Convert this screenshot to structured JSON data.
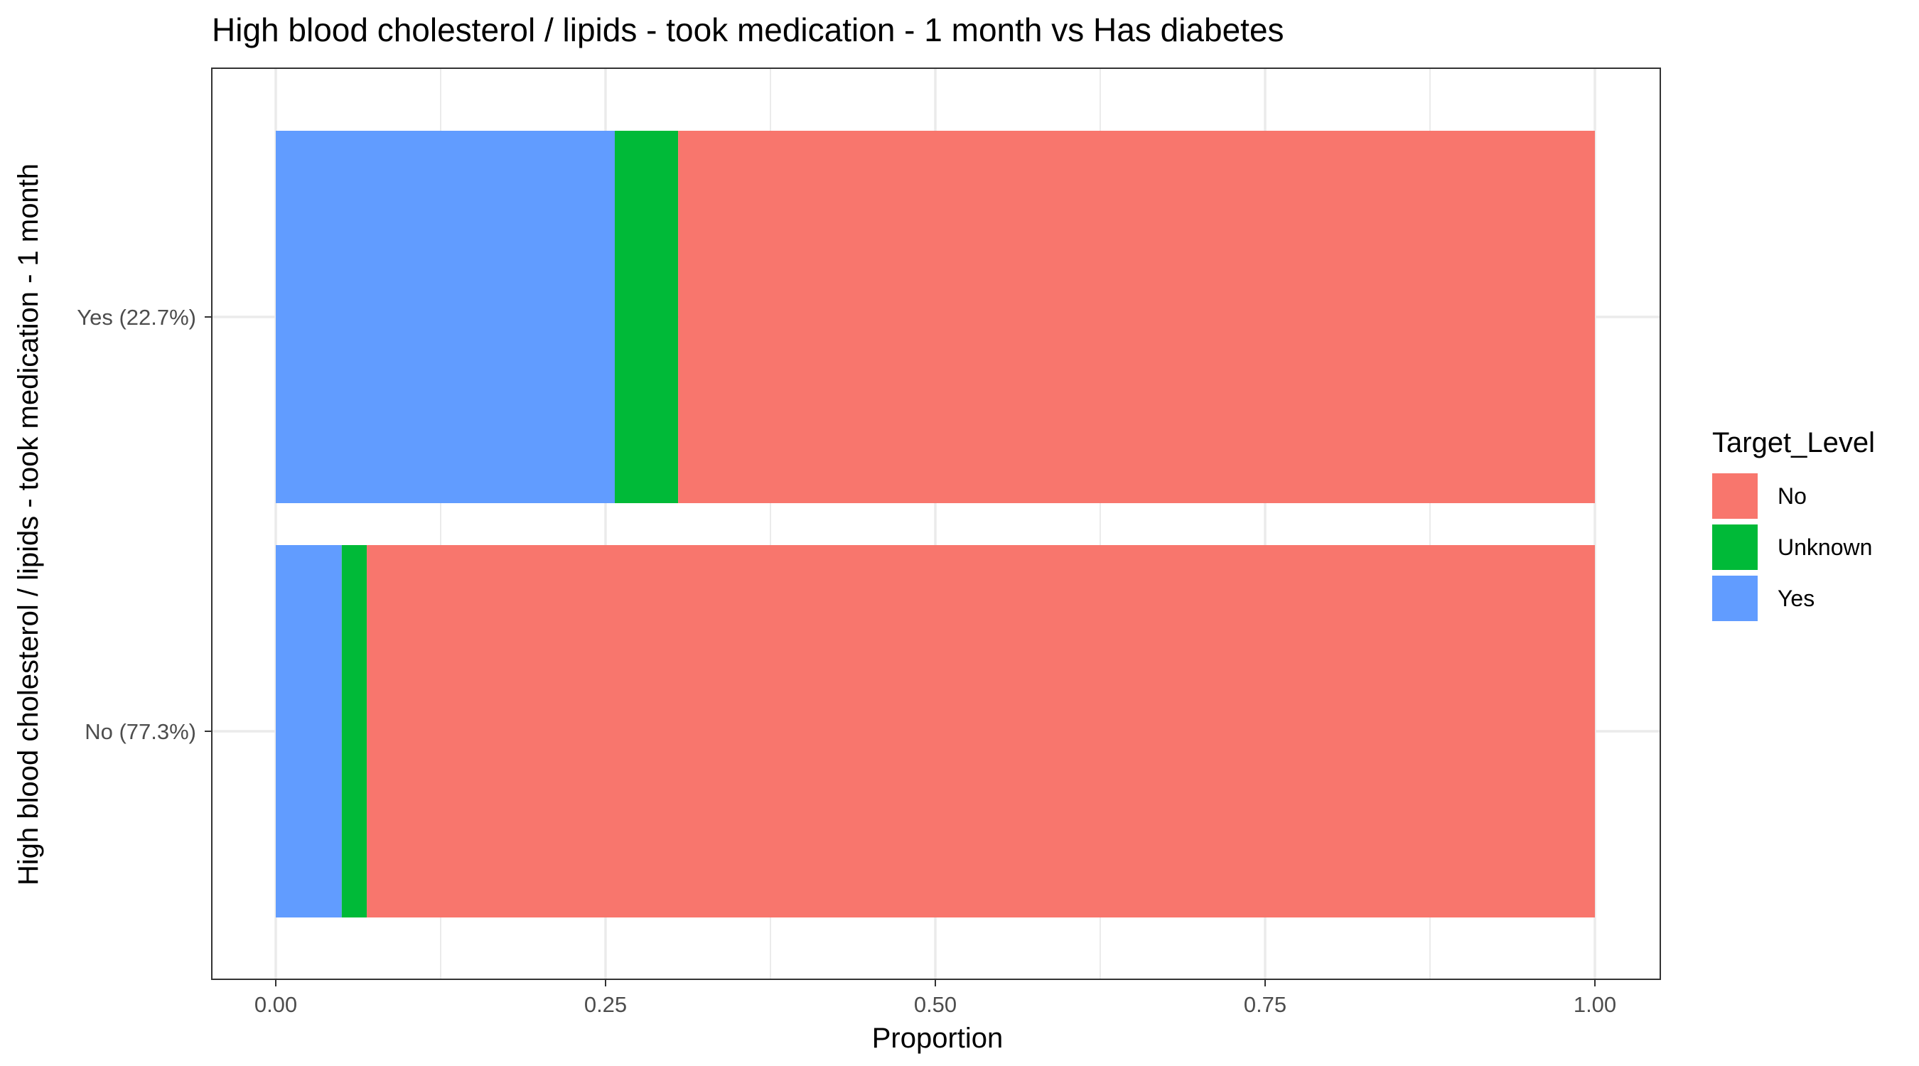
{
  "chart_data": {
    "type": "bar",
    "orientation": "horizontal",
    "stacked": true,
    "title": "High blood cholesterol / lipids - took medication - 1 month vs Has diabetes",
    "xlabel": "Proportion",
    "ylabel": "High blood cholesterol / lipids - took medication - 1 month",
    "xlim": [
      0,
      1
    ],
    "x_ticks": [
      "0.00",
      "0.25",
      "0.50",
      "0.75",
      "1.00"
    ],
    "grid": true,
    "categories": [
      "Yes (22.7%)",
      "No (77.3%)"
    ],
    "series": [
      {
        "name": "Yes",
        "color": "#619CFF",
        "values": [
          0.257,
          0.05
        ]
      },
      {
        "name": "Unknown",
        "color": "#00BA38",
        "values": [
          0.048,
          0.019
        ]
      },
      {
        "name": "No",
        "color": "#F8766D",
        "values": [
          0.695,
          0.931
        ]
      }
    ],
    "legend": {
      "title": "Target_Level",
      "position": "right",
      "entries": [
        "No",
        "Unknown",
        "Yes"
      ]
    }
  }
}
